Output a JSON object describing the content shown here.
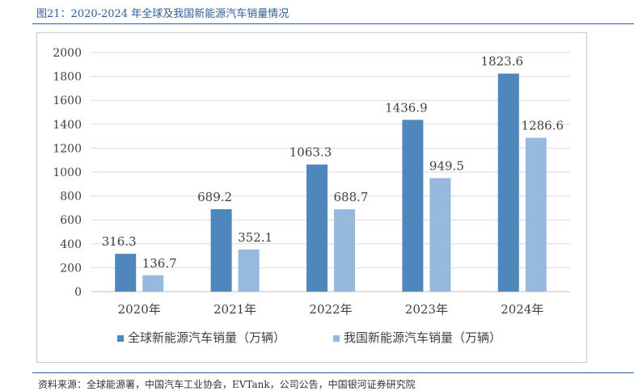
{
  "figure_title": "图21：2020-2024 年全球及我国新能源汽车销量情况",
  "source_text": "资料来源：全球能源署，中国汽车工业协会，EVTank，公司公告，中国银河证券研究院",
  "colors": {
    "series1": "#4f87bd",
    "series2": "#98b9de",
    "title": "#2e5c9a"
  },
  "chart_data": {
    "type": "bar",
    "title": "",
    "categories": [
      "2020年",
      "2021年",
      "2022年",
      "2023年",
      "2024年"
    ],
    "series": [
      {
        "name": "全球新能源汽车销量（万辆）",
        "values": [
          316.3,
          689.2,
          1063.3,
          1436.9,
          1823.6
        ],
        "labels": [
          "316.3",
          "689.2",
          "1063.3",
          "1436.9",
          "1823.6"
        ]
      },
      {
        "name": "我国新能源汽车销量（万辆）",
        "values": [
          136.7,
          352.1,
          688.7,
          949.5,
          1286.6
        ],
        "labels": [
          "136.7",
          "352.1",
          "688.7",
          "949.5",
          "1286.6"
        ]
      }
    ],
    "ylim": [
      0,
      2000
    ],
    "yticks": [
      "0",
      "200",
      "400",
      "600",
      "800",
      "1000",
      "1200",
      "1400",
      "1600",
      "1800",
      "2000"
    ],
    "grid": true,
    "legend": "bottom"
  }
}
